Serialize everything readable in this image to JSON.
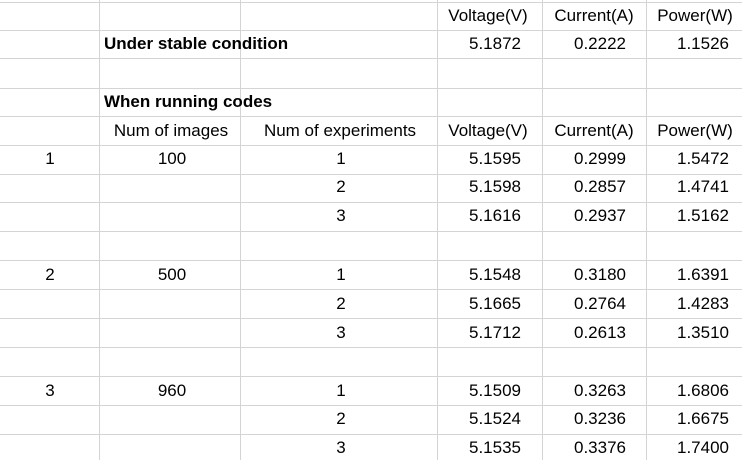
{
  "header": {
    "voltage_label": "Voltage(V)",
    "current_label": "Current(A)",
    "power_label": "Power(W)"
  },
  "stable": {
    "label": "Under stable condition",
    "voltage": "5.1872",
    "current": "0.2222",
    "power": "1.1526"
  },
  "running": {
    "label": "When running codes",
    "col_images": "Num of images",
    "col_experiments": "Num of experiments",
    "col_voltage": "Voltage(V)",
    "col_current": "Current(A)",
    "col_power": "Power(W)"
  },
  "groups": [
    {
      "index": "1",
      "images": "100",
      "rows": [
        {
          "exp": "1",
          "voltage": "5.1595",
          "current": "0.2999",
          "power": "1.5472"
        },
        {
          "exp": "2",
          "voltage": "5.1598",
          "current": "0.2857",
          "power": "1.4741"
        },
        {
          "exp": "3",
          "voltage": "5.1616",
          "current": "0.2937",
          "power": "1.5162"
        }
      ]
    },
    {
      "index": "2",
      "images": "500",
      "rows": [
        {
          "exp": "1",
          "voltage": "5.1548",
          "current": "0.3180",
          "power": "1.6391"
        },
        {
          "exp": "2",
          "voltage": "5.1665",
          "current": "0.2764",
          "power": "1.4283"
        },
        {
          "exp": "3",
          "voltage": "5.1712",
          "current": "0.2613",
          "power": "1.3510"
        }
      ]
    },
    {
      "index": "3",
      "images": "960",
      "rows": [
        {
          "exp": "1",
          "voltage": "5.1509",
          "current": "0.3263",
          "power": "1.6806"
        },
        {
          "exp": "2",
          "voltage": "5.1524",
          "current": "0.3236",
          "power": "1.6675"
        },
        {
          "exp": "3",
          "voltage": "5.1535",
          "current": "0.3376",
          "power": "1.7400"
        }
      ]
    }
  ]
}
